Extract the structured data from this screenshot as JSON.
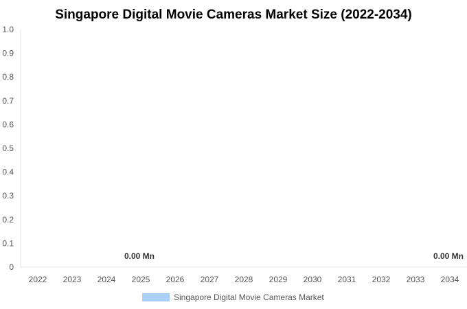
{
  "chart_data": {
    "type": "bar",
    "title": "Singapore Digital Movie Cameras Market Size (2022-2034)",
    "xlabel": "",
    "ylabel": "",
    "categories": [
      "2022",
      "2023",
      "2024",
      "2025",
      "2026",
      "2027",
      "2028",
      "2029",
      "2030",
      "2031",
      "2032",
      "2033",
      "2034"
    ],
    "series": [
      {
        "name": "Singapore Digital Movie Cameras Market",
        "color": "#a8d0f8",
        "values": [
          0,
          0,
          0,
          0,
          0,
          0,
          0,
          0,
          0,
          0,
          0,
          0,
          0
        ]
      }
    ],
    "ylim": [
      0,
      1.0
    ],
    "yticks": [
      "0",
      "0.1",
      "0.2",
      "0.3",
      "0.4",
      "0.5",
      "0.6",
      "0.7",
      "0.8",
      "0.9",
      "1.0"
    ],
    "data_labels": [
      {
        "category": "2025",
        "text": "0.00 Mn"
      },
      {
        "category": "2034",
        "text": "0.00 Mn"
      }
    ],
    "grid": false,
    "legend_position": "bottom"
  }
}
